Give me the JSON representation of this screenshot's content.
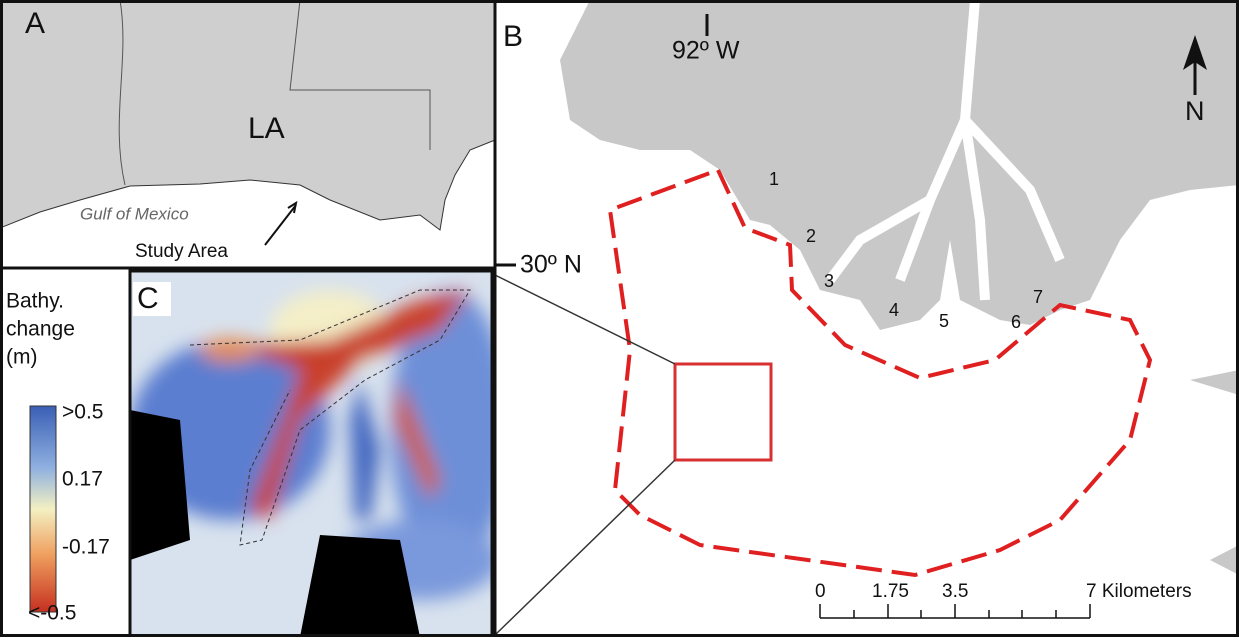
{
  "panel_a": {
    "letter": "A",
    "state": "LA",
    "sea": "Gulf of Mexico",
    "study_area": "Study Area"
  },
  "panel_b": {
    "letter": "B",
    "longitude": "92º W",
    "latitude": "30º N",
    "north": "N",
    "sites": [
      "1",
      "2",
      "3",
      "4",
      "5",
      "6",
      "7"
    ],
    "scale_labels": [
      "0",
      "1.75",
      "3.5",
      "7 Kilometers"
    ]
  },
  "panel_c": {
    "letter": "C",
    "legend_title": [
      "Bathy.",
      "change",
      "(m)"
    ],
    "legend_labels": [
      ">0.5",
      "0.17",
      "-0.17",
      "<-0.5"
    ]
  }
}
